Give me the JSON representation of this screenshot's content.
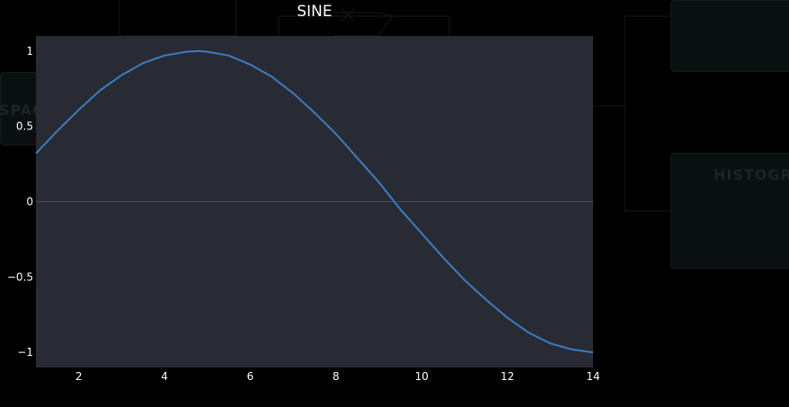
{
  "background": {
    "ghost_labels": [
      "SPAC",
      "HISTOGRA"
    ]
  },
  "colors": {
    "page_background": "#000000",
    "plot_background": "#282b33",
    "line": "#3b7cc4",
    "zero_line": "#4a4d55",
    "text": "#ffffff"
  },
  "chart_data": {
    "type": "line",
    "title": "SINE",
    "xlabel": "",
    "ylabel": "",
    "xlim": [
      1,
      14
    ],
    "ylim": [
      -1.1,
      1.1
    ],
    "x_ticks": [
      2,
      4,
      6,
      8,
      10,
      12,
      14
    ],
    "y_ticks": [
      -1,
      -0.5,
      0,
      0.5,
      1
    ],
    "y_tick_labels": [
      "−1",
      "−0.5",
      "0",
      "0.5",
      "1"
    ],
    "grid": false,
    "zero_line": true,
    "series": [
      {
        "x": [
          1.0,
          1.5,
          2.0,
          2.5,
          3.0,
          3.5,
          4.0,
          4.5,
          4.8,
          5.0,
          5.5,
          6.0,
          6.5,
          7.0,
          7.5,
          8.0,
          8.5,
          9.0,
          9.5,
          10.0,
          10.5,
          11.0,
          11.5,
          12.0,
          12.5,
          13.0,
          13.5,
          14.0
        ],
        "y": [
          0.32,
          0.47,
          0.61,
          0.74,
          0.84,
          0.92,
          0.97,
          0.995,
          1.0,
          0.995,
          0.97,
          0.91,
          0.83,
          0.72,
          0.59,
          0.45,
          0.29,
          0.13,
          -0.05,
          -0.21,
          -0.37,
          -0.52,
          -0.65,
          -0.77,
          -0.87,
          -0.94,
          -0.98,
          -1.0
        ]
      }
    ]
  }
}
